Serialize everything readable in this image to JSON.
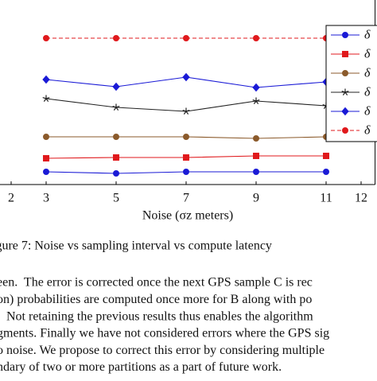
{
  "chart_data": {
    "type": "line",
    "x_label": "Noise (σz meters)",
    "xticks": [
      2,
      3,
      5,
      7,
      9,
      11,
      12
    ],
    "xlim": [
      1.7,
      12.4
    ],
    "ylim": [
      8,
      240
    ],
    "x": [
      3,
      5,
      7,
      9,
      11
    ],
    "legend": "upper right",
    "series": [
      {
        "name": "δ",
        "color": "#1a1ad6",
        "marker": "circle",
        "dash": false,
        "values": [
          24,
          22,
          24,
          24,
          24
        ]
      },
      {
        "name": "δ",
        "color": "#e0191c",
        "marker": "square",
        "dash": false,
        "values": [
          41,
          42,
          42,
          44,
          44
        ]
      },
      {
        "name": "δ",
        "color": "#8b5a2b",
        "marker": "circle",
        "dash": false,
        "values": [
          68,
          68,
          68,
          66,
          68
        ]
      },
      {
        "name": "δ",
        "color": "#222222",
        "marker": "star",
        "dash": false,
        "values": [
          116,
          105,
          100,
          113,
          107
        ]
      },
      {
        "name": "δ",
        "color": "#1a1ad6",
        "marker": "diamond",
        "dash": false,
        "values": [
          140,
          131,
          143,
          130,
          137
        ]
      },
      {
        "name": "δ",
        "color": "#e0191c",
        "marker": "circle",
        "dash": true,
        "values": [
          192,
          192,
          192,
          192,
          192
        ]
      }
    ]
  },
  "caption": "igure 7: Noise vs sampling interval vs compute latency",
  "paragraph": [
    "een.  The error is corrected once the next GPS sample C is rec",
    "on) probabilities are computed once more for B along with po",
    "   Not retaining the previous results thus enables the algorithm",
    "gments. Finally we have not considered errors where the GPS sig",
    "o noise. We propose to correct this error by considering multiple",
    "ndary of two or more partitions as a part of future work."
  ]
}
